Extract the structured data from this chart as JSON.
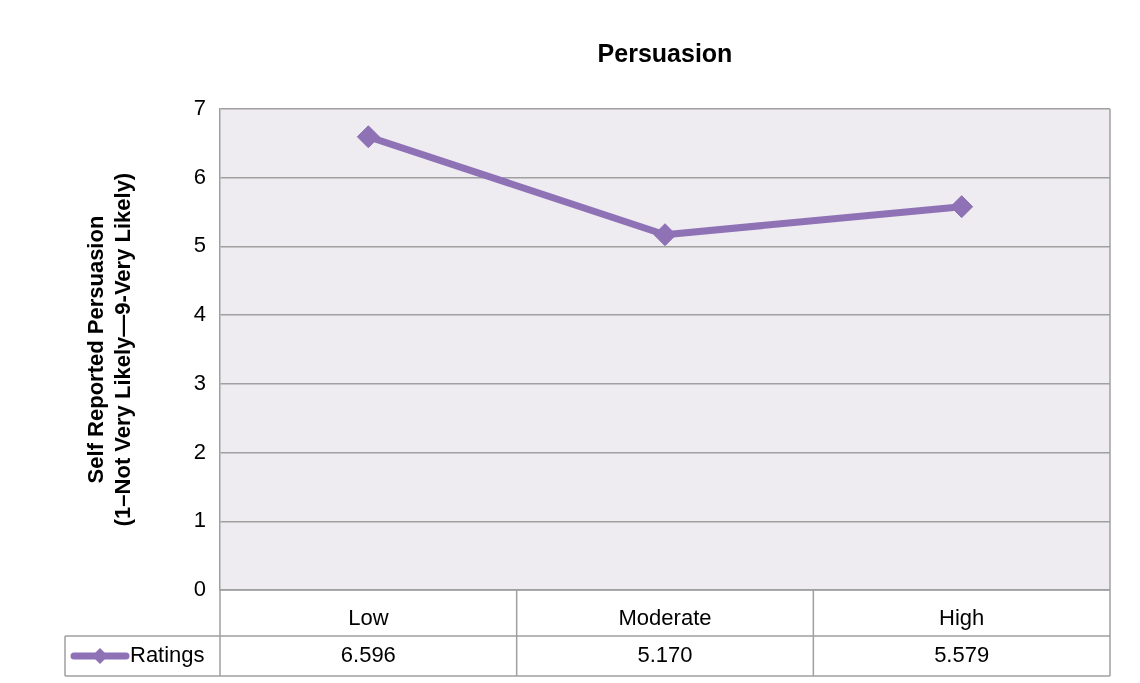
{
  "chart_data": {
    "type": "line",
    "title": "Persuasion",
    "ylabel": "Self Reported Persuasion\n(1–Not Very Likely—9-Very Likely)",
    "categories": [
      "Low",
      "Moderate",
      "High"
    ],
    "series": [
      {
        "name": "Ratings",
        "color": "#8e72b5",
        "values": [
          6.596,
          5.17,
          5.579
        ],
        "value_labels": [
          "6.596",
          "5.170",
          "5.579"
        ]
      }
    ],
    "ylim": [
      0,
      7
    ],
    "yticks": [
      0,
      1,
      2,
      3,
      4,
      5,
      6,
      7
    ],
    "grid": "y",
    "marker": "diamond",
    "legend": "bottom left"
  }
}
